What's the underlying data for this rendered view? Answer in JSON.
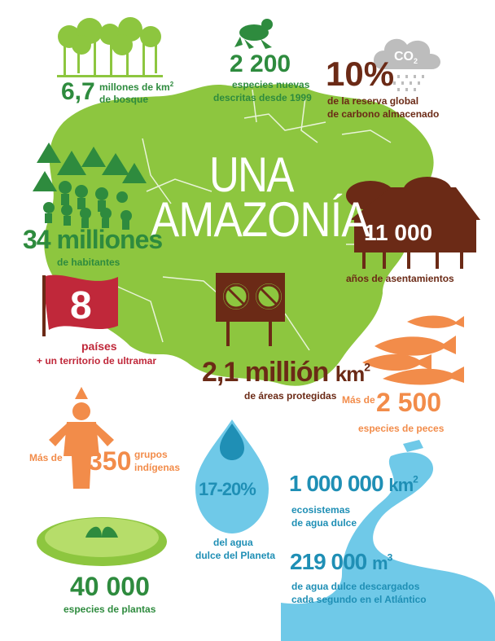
{
  "title": {
    "line1": "UNA",
    "line2": "AMAZONÍA"
  },
  "forest": {
    "value": "6,7",
    "label1": "millones de km",
    "sup": "2",
    "label2": "de bosque"
  },
  "species_described": {
    "value": "2 200",
    "label1": "especies nuevas",
    "label2": "descritas desde 1999"
  },
  "carbon": {
    "value": "10%",
    "label1": "de la reserva global",
    "label2": "de carbono almacenado",
    "cloud_label": "CO",
    "cloud_sub": "2"
  },
  "inhabitants": {
    "value": "34 milliones",
    "label": "de habitantes"
  },
  "settlements": {
    "value": "11 000",
    "label": "años de asentamientos"
  },
  "countries": {
    "value": "8",
    "label1": "países",
    "label2": "+ un territorio de ultramar"
  },
  "protected": {
    "value": "2,1 millión",
    "unit": "km",
    "sup": "2",
    "label": "de áreas protegidas"
  },
  "fish": {
    "prefix": "Más de",
    "value": "2 500",
    "label": "especies de peces"
  },
  "indigenous": {
    "prefix": "Más de",
    "value": "350",
    "label1": "grupos",
    "label2": "indígenas"
  },
  "water": {
    "value": "17-20%",
    "label1": "del agua",
    "label2": "dulce del Planeta"
  },
  "freshwater": {
    "value": "1 000 000",
    "unit": "km",
    "sup": "2",
    "label1": "ecosistemas",
    "label2": "de agua dulce"
  },
  "discharge": {
    "value": "219 000",
    "unit": "m",
    "sup": "3",
    "label1": "de agua dulce descargados",
    "label2": "cada segundo en el Atlántico"
  },
  "plants": {
    "value": "40 000",
    "label": "especies de plantas"
  },
  "colors": {
    "map": "#8dc63f",
    "dark_green": "#2e8b3e",
    "brown": "#6b2a16",
    "orange": "#f28c4a",
    "blue": "#1f8fb5",
    "water": "#6fc9e8",
    "red_flag": "#c0283a"
  },
  "icons": [
    "tree-icon",
    "frog-icon",
    "co2-cloud-icon",
    "people-forest-icon",
    "hut-icon",
    "flag-icon",
    "no-hunting-sign-icon",
    "fish-icon",
    "indigenous-person-icon",
    "water-drop-icon",
    "river-icon",
    "water-lily-icon"
  ]
}
